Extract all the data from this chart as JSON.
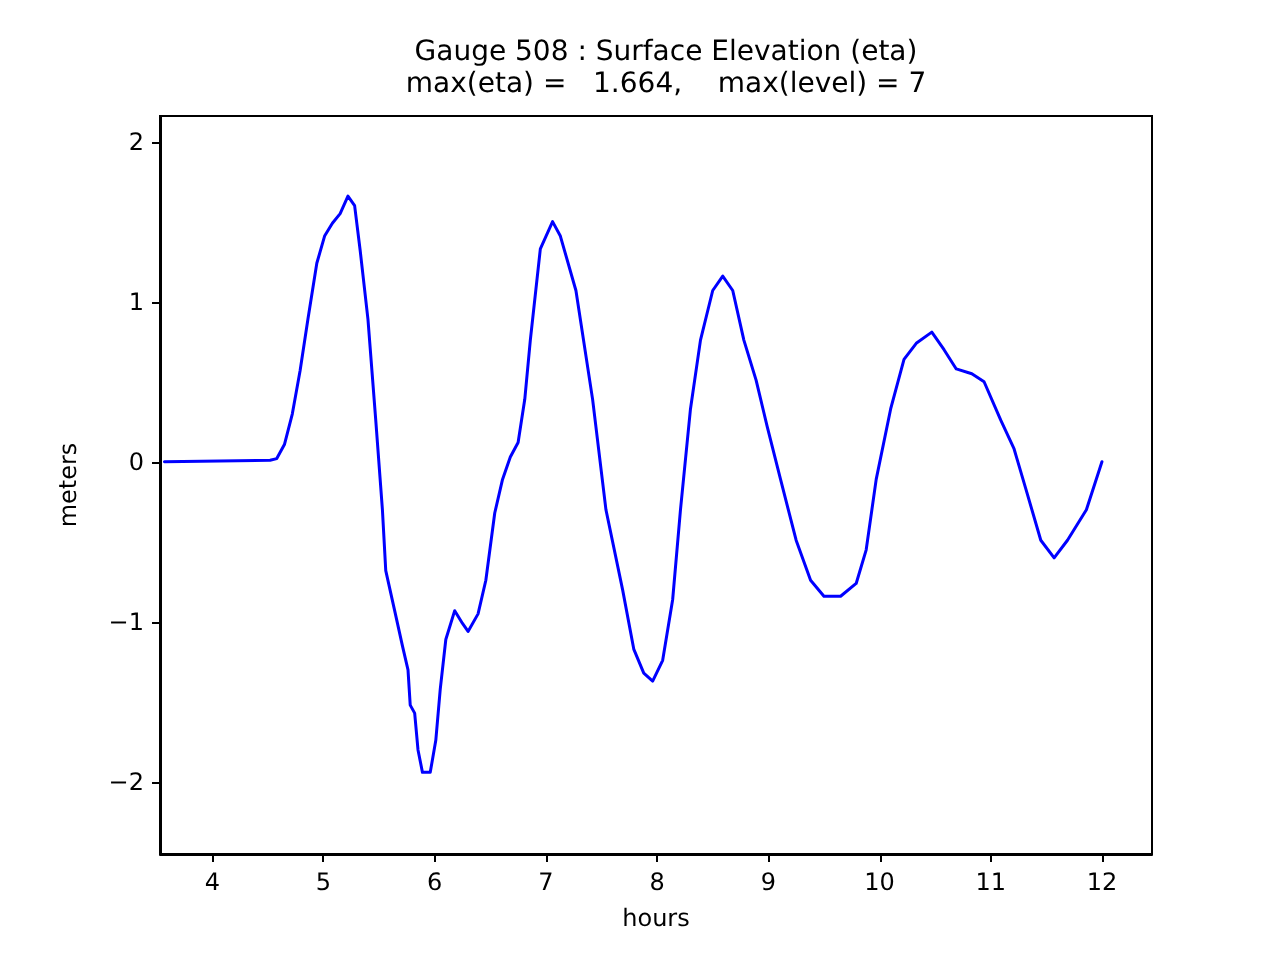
{
  "chart_data": {
    "type": "line",
    "title": "Gauge 508 : Surface Elevation (eta)",
    "subtitle": "max(eta) =   1.664,    max(level) = 7",
    "xlabel": "hours",
    "ylabel": "meters",
    "xlim": [
      3.53,
      12.45
    ],
    "ylim": [
      -2.45,
      2.16
    ],
    "xticks": [
      4,
      5,
      6,
      7,
      8,
      9,
      10,
      11,
      12
    ],
    "yticks": [
      {
        "value": -2,
        "label": "−2"
      },
      {
        "value": -1,
        "label": "−1"
      },
      0,
      1,
      2
    ],
    "grid": false,
    "marker": "none",
    "line_style": "solid",
    "series": [
      {
        "color": "#0000ff",
        "x": [
          3.57,
          4.52,
          4.58,
          4.65,
          4.72,
          4.79,
          4.86,
          4.94,
          5.01,
          5.08,
          5.15,
          5.22,
          5.28,
          5.33,
          5.4,
          5.47,
          5.53,
          5.56,
          5.64,
          5.71,
          5.76,
          5.78,
          5.82,
          5.85,
          5.89,
          5.96,
          6.01,
          6.05,
          6.1,
          6.18,
          6.25,
          6.3,
          6.39,
          6.46,
          6.54,
          6.61,
          6.68,
          6.75,
          6.81,
          6.86,
          6.95,
          7.06,
          7.13,
          7.27,
          7.42,
          7.54,
          7.69,
          7.79,
          7.88,
          7.96,
          8.05,
          8.14,
          8.21,
          8.3,
          8.39,
          8.5,
          8.59,
          8.68,
          8.78,
          8.89,
          8.99,
          9.11,
          9.25,
          9.38,
          9.5,
          9.65,
          9.79,
          9.88,
          9.97,
          10.1,
          10.22,
          10.33,
          10.47,
          10.58,
          10.69,
          10.83,
          10.94,
          11.09,
          11.21,
          11.32,
          11.45,
          11.57,
          11.69,
          11.86,
          12.0
        ],
        "values": [
          0.0,
          0.01,
          0.02,
          0.11,
          0.3,
          0.57,
          0.89,
          1.24,
          1.41,
          1.49,
          1.55,
          1.66,
          1.6,
          1.32,
          0.89,
          0.26,
          -0.3,
          -0.68,
          -0.93,
          -1.15,
          -1.3,
          -1.52,
          -1.57,
          -1.8,
          -1.94,
          -1.94,
          -1.74,
          -1.42,
          -1.11,
          -0.93,
          -1.01,
          -1.06,
          -0.95,
          -0.74,
          -0.32,
          -0.11,
          0.03,
          0.12,
          0.39,
          0.76,
          1.33,
          1.5,
          1.41,
          1.07,
          0.39,
          -0.3,
          -0.8,
          -1.17,
          -1.32,
          -1.37,
          -1.24,
          -0.86,
          -0.3,
          0.33,
          0.76,
          1.07,
          1.16,
          1.07,
          0.76,
          0.51,
          0.22,
          -0.11,
          -0.49,
          -0.74,
          -0.84,
          -0.84,
          -0.76,
          -0.55,
          -0.11,
          0.33,
          0.64,
          0.74,
          0.81,
          0.7,
          0.58,
          0.55,
          0.5,
          0.26,
          0.08,
          -0.18,
          -0.49,
          -0.6,
          -0.49,
          -0.3,
          0.0
        ]
      }
    ]
  }
}
